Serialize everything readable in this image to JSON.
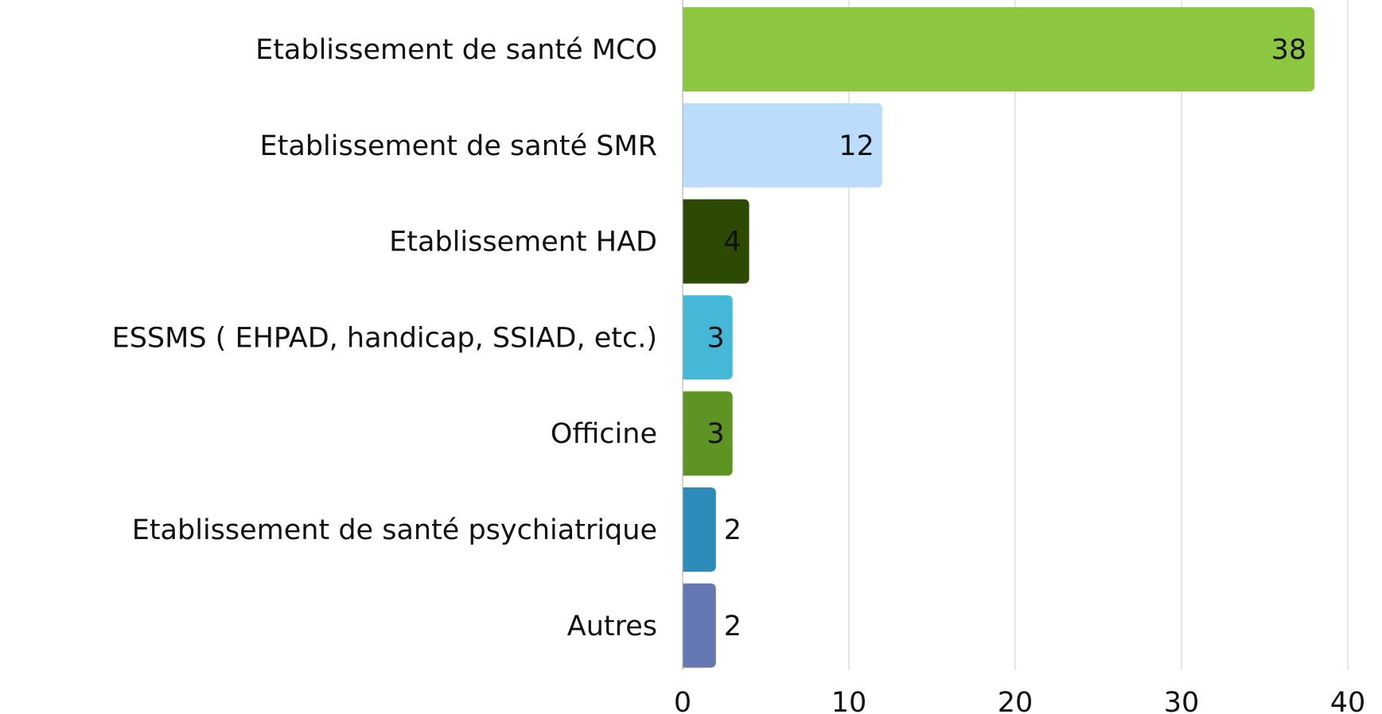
{
  "chart_data": {
    "type": "bar",
    "orientation": "horizontal",
    "categories": [
      "Etablissement de santé MCO",
      "Etablissement de santé SMR",
      "Etablissement HAD",
      "ESSMS ( EHPAD, handicap, SSIAD, etc.)",
      "Officine",
      "Etablissement de santé psychiatrique",
      "Autres"
    ],
    "values": [
      38,
      12,
      4,
      3,
      3,
      2,
      2
    ],
    "colors": [
      "#8dc63f",
      "#bbdcfd",
      "#2d4a05",
      "#45b8d8",
      "#5e9424",
      "#2c8bbb",
      "#6479b3"
    ],
    "xlim": [
      0,
      40
    ],
    "xticks": [
      0,
      10,
      20,
      30,
      40
    ],
    "grid": true
  }
}
